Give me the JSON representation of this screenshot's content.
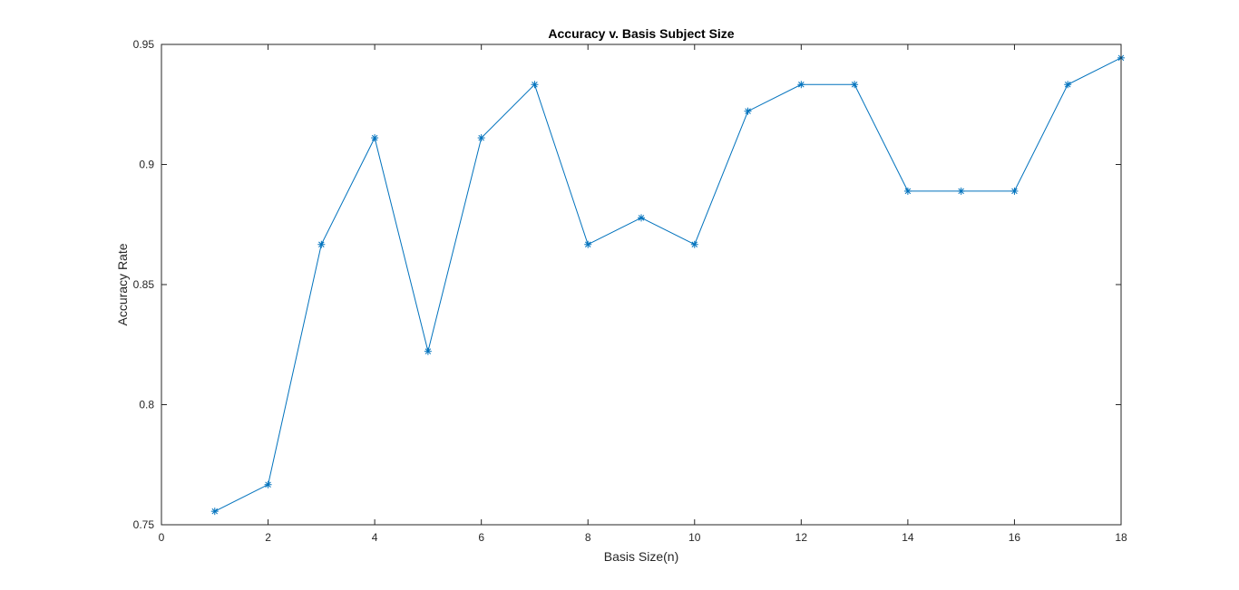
{
  "chart_data": {
    "type": "line",
    "title": "Accuracy v. Basis Subject Size",
    "xlabel": "Basis Size(n)",
    "ylabel": "Accuracy Rate",
    "xlim": [
      0,
      18
    ],
    "ylim": [
      0.75,
      0.95
    ],
    "xticks": [
      0,
      2,
      4,
      6,
      8,
      10,
      12,
      14,
      16,
      18
    ],
    "xtick_labels": [
      "0",
      "2",
      "4",
      "6",
      "8",
      "10",
      "12",
      "14",
      "16",
      "18"
    ],
    "yticks": [
      0.75,
      0.8,
      0.85,
      0.9,
      0.95
    ],
    "ytick_labels": [
      "0.75",
      "0.8",
      "0.85",
      "0.9",
      "0.95"
    ],
    "grid": false,
    "marker": "asterisk",
    "series_color": "#0072BD",
    "series": [
      {
        "x": [
          1,
          2,
          3,
          4,
          5,
          6,
          7,
          8,
          9,
          10,
          11,
          12,
          13,
          14,
          15,
          16,
          17,
          18
        ],
        "values": [
          0.7556,
          0.7667,
          0.8667,
          0.9111,
          0.8222,
          0.9111,
          0.9333,
          0.8667,
          0.8778,
          0.8667,
          0.9222,
          0.9333,
          0.9333,
          0.8889,
          0.8889,
          0.8889,
          0.9333,
          0.9444
        ]
      }
    ]
  }
}
